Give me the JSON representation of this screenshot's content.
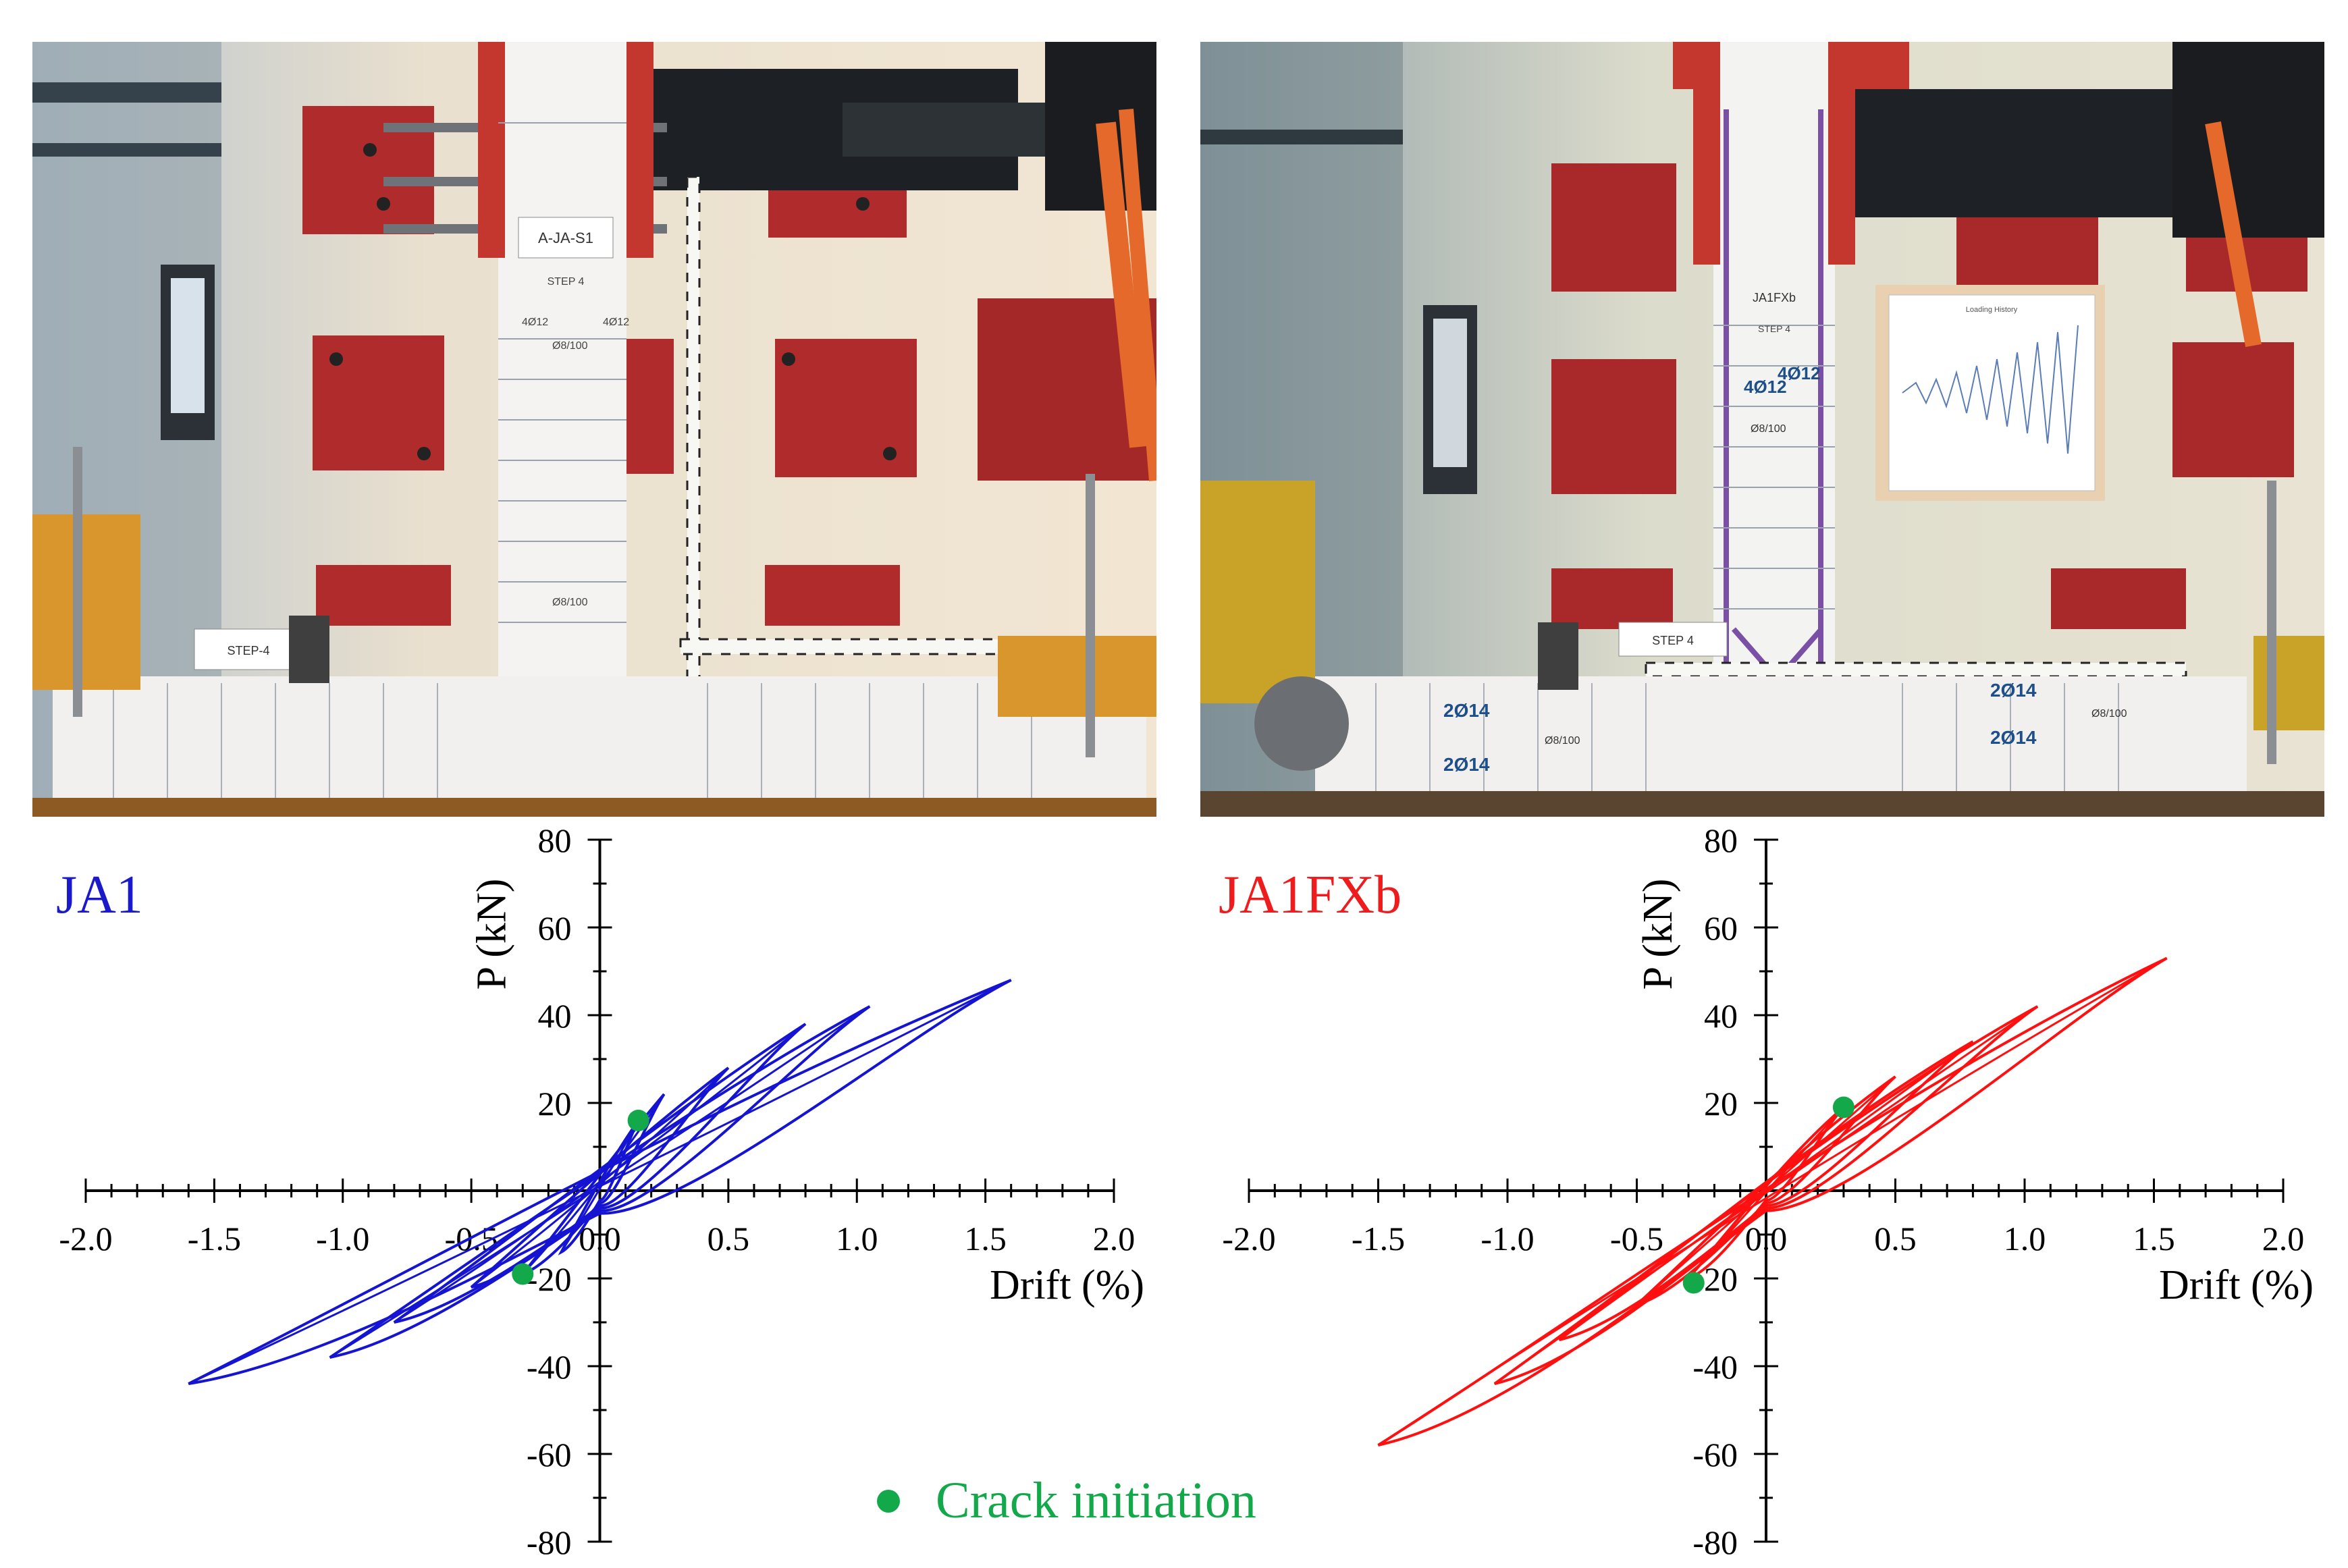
{
  "photos": {
    "left": {
      "labels": [
        "A-JA-S1",
        "STEP 4",
        "4Ø12",
        "4Ø12",
        "Ø8/100",
        "Ø8/100",
        "STEP-4"
      ]
    },
    "right": {
      "labels": [
        "JA1FXb",
        "STEP 4",
        "4Ø12",
        "4Ø12",
        "Ø8/100",
        "STEP 4",
        "2Ø14",
        "2Ø14",
        "2Ø14",
        "2Ø14",
        "Ø8/100",
        "Ø8/100",
        "Loading History"
      ]
    }
  },
  "legend": {
    "marker_label": "Crack initiation",
    "marker_color": "#13a84a"
  },
  "chart_data": [
    {
      "type": "line",
      "title": "JA1",
      "title_color": "#1a1acc",
      "xlabel": "Drift (%)",
      "ylabel": "P (kN)",
      "xlim": [
        -2.0,
        2.0
      ],
      "ylim": [
        -80,
        80
      ],
      "x_ticks": [
        "-2.0",
        "-1.5",
        "-1.0",
        "-0.5",
        "0.0",
        "0.5",
        "1.0",
        "1.5",
        "2.0"
      ],
      "y_ticks": [
        "-80",
        "-60",
        "-40",
        "-20",
        "",
        "20",
        "40",
        "60",
        "80"
      ],
      "series": [
        {
          "color": "#1414d2",
          "cycles": [
            {
              "pos": [
                0.15,
                16
              ],
              "neg": [
                -0.15,
                -14
              ]
            },
            {
              "pos": [
                0.25,
                22
              ],
              "neg": [
                -0.3,
                -19
              ]
            },
            {
              "pos": [
                0.5,
                28
              ],
              "neg": [
                -0.5,
                -22
              ]
            },
            {
              "pos": [
                0.8,
                38
              ],
              "neg": [
                -0.8,
                -30
              ]
            },
            {
              "pos": [
                1.05,
                42
              ],
              "neg": [
                -1.05,
                -38
              ]
            },
            {
              "pos": [
                1.6,
                48
              ],
              "neg": [
                -1.6,
                -44
              ]
            }
          ]
        }
      ],
      "crack_points": [
        [
          0.15,
          16
        ],
        [
          -0.3,
          -19
        ]
      ]
    },
    {
      "type": "line",
      "title": "JA1FXb",
      "title_color": "#ee1c1c",
      "xlabel": "Drift (%)",
      "ylabel": "P (kN)",
      "xlim": [
        -2.0,
        2.0
      ],
      "ylim": [
        -80,
        80
      ],
      "x_ticks": [
        "-2.0",
        "-1.5",
        "-1.0",
        "-0.5",
        "0.0",
        "0.5",
        "1.0",
        "1.5",
        "2.0"
      ],
      "y_ticks": [
        "-80",
        "-60",
        "-40",
        "-20",
        "",
        "20",
        "40",
        "60",
        "80"
      ],
      "series": [
        {
          "color": "#ff1010",
          "cycles": [
            {
              "pos": [
                0.3,
                19
              ],
              "neg": [
                -0.3,
                -20
              ]
            },
            {
              "pos": [
                0.5,
                26
              ],
              "neg": [
                -0.5,
                -26
              ]
            },
            {
              "pos": [
                0.8,
                34
              ],
              "neg": [
                -0.8,
                -34
              ]
            },
            {
              "pos": [
                1.05,
                42
              ],
              "neg": [
                -1.05,
                -44
              ]
            },
            {
              "pos": [
                1.55,
                53
              ],
              "neg": [
                -1.5,
                -58
              ]
            }
          ]
        }
      ],
      "crack_points": [
        [
          0.3,
          19
        ],
        [
          -0.28,
          -21
        ]
      ]
    }
  ]
}
